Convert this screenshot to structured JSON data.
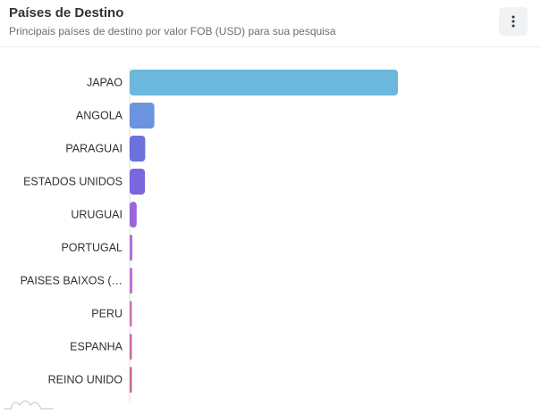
{
  "header": {
    "title": "Países de Destino",
    "subtitle": "Principais países de destino por valor FOB (USD) para sua pesquisa",
    "menu_icon": "more-vertical-icon"
  },
  "chart_data": {
    "type": "bar",
    "orientation": "horizontal",
    "title": "Países de Destino",
    "subtitle": "Principais países de destino por valor FOB (USD) para sua pesquisa",
    "categories": [
      "JAPAO",
      "ANGOLA",
      "PARAGUAI",
      "ESTADOS UNIDOS",
      "URUGUAI",
      "PORTUGAL",
      "PAISES BAIXOS (…",
      "PERU",
      "ESPANHA",
      "REINO UNIDO"
    ],
    "values": [
      100,
      9.2,
      5.8,
      5.7,
      2.6,
      1.0,
      1.0,
      0.6,
      0.6,
      0.5
    ],
    "colors": [
      "#6bb8dc",
      "#6b93e0",
      "#6b71dd",
      "#7a66df",
      "#9a66dc",
      "#b56edb",
      "#c470d6",
      "#c976b6",
      "#c9709c",
      "#c86c86"
    ],
    "xlim": [
      0,
      100
    ],
    "grid": false,
    "legend": "none"
  }
}
